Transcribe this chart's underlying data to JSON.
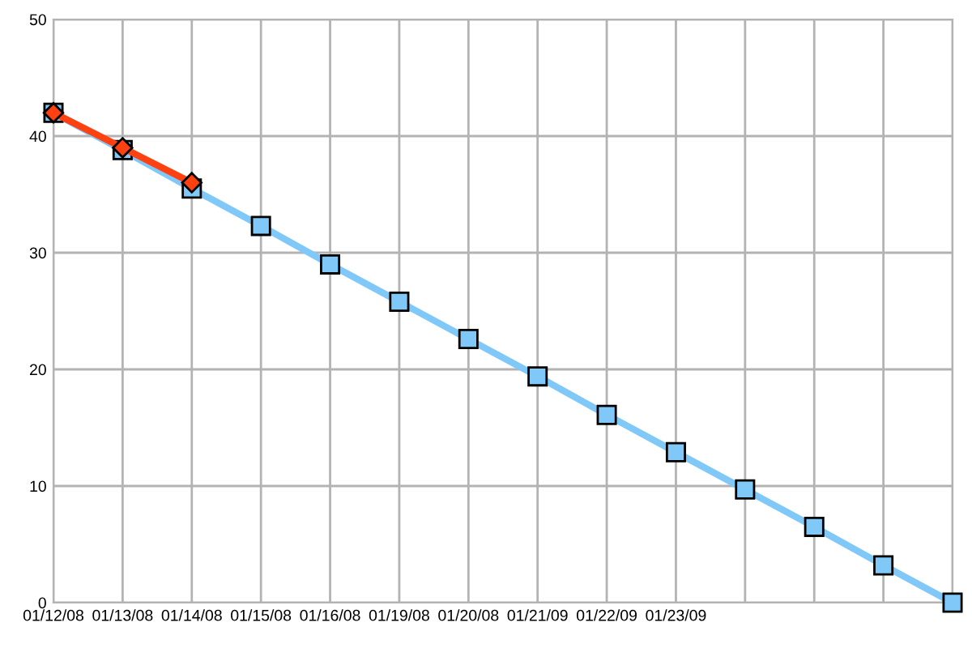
{
  "chart_data": {
    "type": "line",
    "categories": [
      "01/12/08",
      "01/13/08",
      "01/14/08",
      "01/15/08",
      "01/16/08",
      "01/19/08",
      "01/20/08",
      "01/21/09",
      "01/22/09",
      "01/23/09",
      null,
      null,
      null,
      null
    ],
    "series": [
      {
        "color": "#80c8f8",
        "marker": "square",
        "values": [
          42,
          38.8,
          35.5,
          32.3,
          29,
          25.8,
          22.6,
          19.4,
          16.1,
          12.9,
          9.7,
          6.5,
          3.2,
          0
        ]
      },
      {
        "color": "#ff4010",
        "marker": "diamond",
        "values": [
          42,
          39,
          36,
          null,
          null,
          null,
          null,
          null,
          null,
          null,
          null,
          null,
          null,
          null
        ]
      }
    ],
    "ylim": [
      0,
      50
    ],
    "yticks": [
      0,
      10,
      20,
      30,
      40,
      50
    ],
    "grid": true
  }
}
